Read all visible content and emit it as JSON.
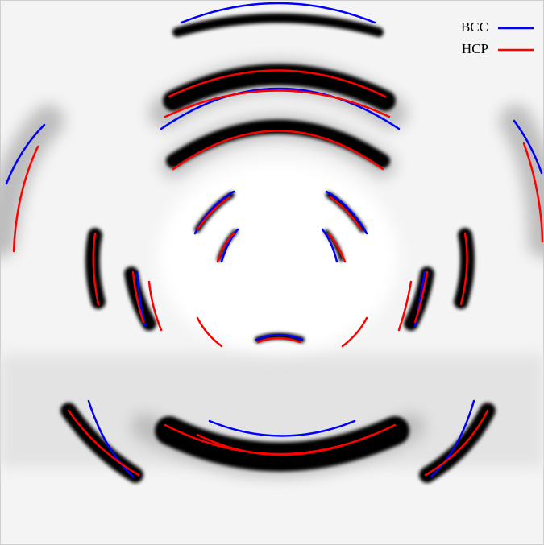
{
  "legend": [
    {
      "label": "BCC",
      "color": "#0000ff"
    },
    {
      "label": "HCP",
      "color": "#ff0000"
    }
  ]
}
